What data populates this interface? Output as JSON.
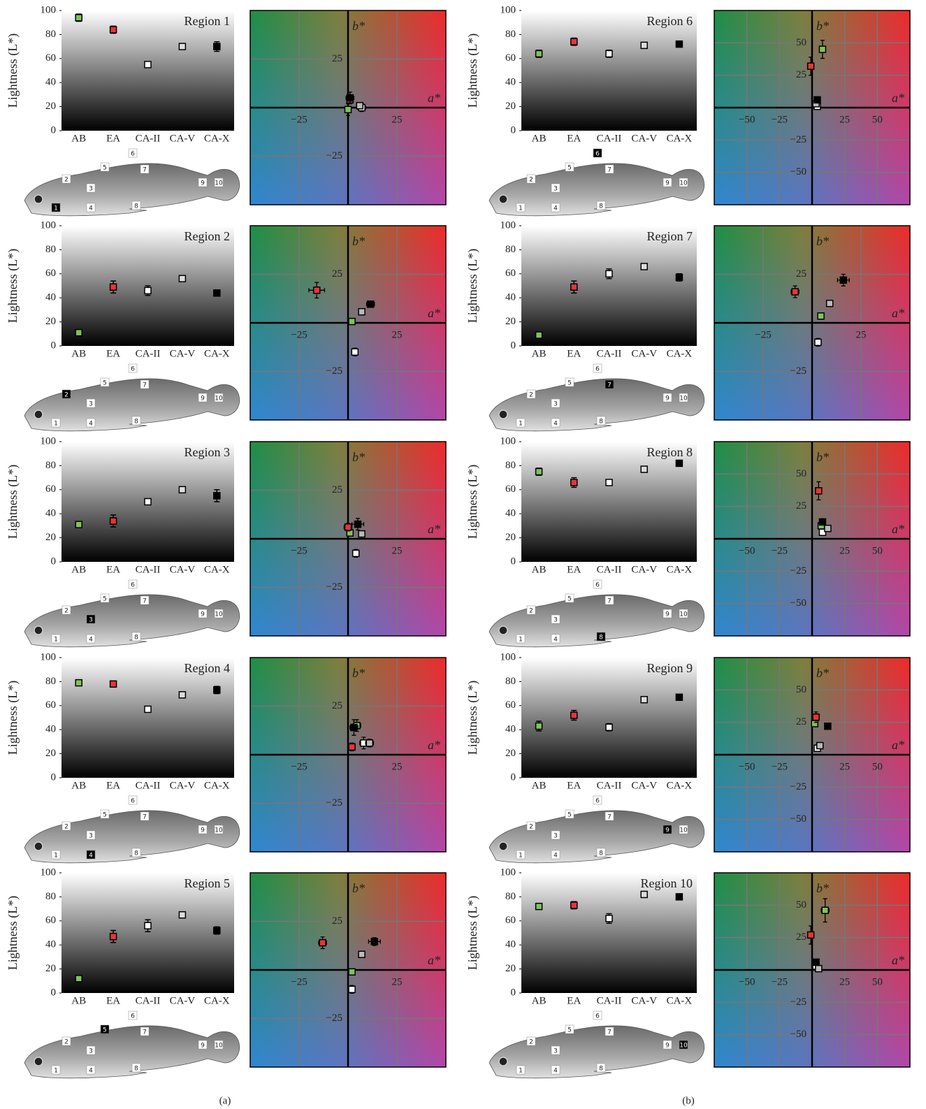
{
  "panel_labels": [
    "(a)",
    "(b)"
  ],
  "fish_labels": [
    "1",
    "2",
    "3",
    "4",
    "5",
    "6",
    "7",
    "8",
    "9",
    "10"
  ],
  "chart_data": [
    {
      "type": "errorbar",
      "title": "Region 1",
      "ylabel": "Lightness (L*)",
      "categories": [
        "AB",
        "EA",
        "CA-II",
        "CA-V",
        "CA-X"
      ],
      "values": [
        94,
        84,
        55,
        70,
        70
      ],
      "errors": [
        3,
        3,
        2,
        2,
        4
      ],
      "colors": [
        "#7dc55a",
        "#e8343a",
        "#ffffff",
        "#dddddd",
        "#000000"
      ],
      "ylim": [
        0,
        100
      ],
      "yticks": [
        0,
        20,
        40,
        60,
        80,
        100
      ]
    },
    {
      "type": "scatter",
      "xlabel": "a*",
      "ylabel": "b*",
      "x": [
        0,
        1,
        7,
        6,
        1
      ],
      "y": [
        -1,
        4,
        0,
        1,
        5
      ],
      "xerr": [
        1,
        1,
        2,
        1,
        2
      ],
      "yerr": [
        3,
        2,
        2,
        1,
        3
      ],
      "colors": [
        "#7dc55a",
        "#e8343a",
        "#ffffff",
        "#bbbbbb",
        "#000000"
      ],
      "xlim": [
        -50,
        50
      ],
      "ylim": [
        -50,
        50
      ],
      "xticks": [
        {
          "value": -25,
          "label": "−25"
        },
        25
      ],
      "yticks": [
        {
          "value": -25,
          "label": "−25"
        },
        25
      ]
    },
    {
      "type": "errorbar",
      "title": "Region 2",
      "ylabel": "Lightness (L*)",
      "categories": [
        "AB",
        "EA",
        "CA-II",
        "CA-V",
        "CA-X"
      ],
      "values": [
        11,
        49,
        46,
        56,
        44
      ],
      "errors": [
        2,
        5,
        4,
        2,
        1
      ],
      "colors": [
        "#7dc55a",
        "#e8343a",
        "#ffffff",
        "#dddddd",
        "#000000"
      ],
      "ylim": [
        0,
        100
      ],
      "yticks": [
        0,
        20,
        40,
        60,
        80,
        100
      ]
    },
    {
      "type": "scatter",
      "xlabel": "a*",
      "ylabel": "b*",
      "x": [
        2,
        -16,
        3.5,
        7,
        11.5
      ],
      "y": [
        0.7,
        16.8,
        -15,
        5.7,
        9.6
      ],
      "xerr": [
        1,
        4,
        1,
        1,
        2
      ],
      "yerr": [
        1,
        4,
        2,
        1,
        1
      ],
      "colors": [
        "#7dc55a",
        "#e8343a",
        "#ffffff",
        "#bbbbbb",
        "#000000"
      ],
      "xlim": [
        -50,
        50
      ],
      "ylim": [
        -50,
        50
      ],
      "xticks": [
        {
          "value": -25,
          "label": "−25"
        },
        25
      ],
      "yticks": [
        {
          "value": -25,
          "label": "−25"
        },
        25
      ]
    },
    {
      "type": "errorbar",
      "title": "Region 3",
      "ylabel": "Lightness (L*)",
      "categories": [
        "AB",
        "EA",
        "CA-II",
        "CA-V",
        "CA-X"
      ],
      "values": [
        31,
        34,
        50,
        60,
        55
      ],
      "errors": [
        2,
        5,
        2,
        2,
        5
      ],
      "colors": [
        "#7dc55a",
        "#e8343a",
        "#ffffff",
        "#dddddd",
        "#000000"
      ],
      "ylim": [
        0,
        100
      ],
      "yticks": [
        0,
        20,
        40,
        60,
        80,
        100
      ]
    },
    {
      "type": "scatter",
      "xlabel": "a*",
      "ylabel": "b*",
      "x": [
        1,
        0,
        4,
        7,
        5
      ],
      "y": [
        3,
        6,
        -7.5,
        2.5,
        7.5
      ],
      "xerr": [
        1,
        2,
        1,
        1,
        3
      ],
      "yerr": [
        1,
        2,
        2,
        1,
        3
      ],
      "colors": [
        "#7dc55a",
        "#e8343a",
        "#ffffff",
        "#bbbbbb",
        "#000000"
      ],
      "xlim": [
        -50,
        50
      ],
      "ylim": [
        -50,
        50
      ],
      "xticks": [
        {
          "value": -25,
          "label": "−25"
        },
        25
      ],
      "yticks": [
        {
          "value": -25,
          "label": "−25"
        },
        25
      ]
    },
    {
      "type": "errorbar",
      "title": "Region 4",
      "ylabel": "Lightness (L*)",
      "categories": [
        "AB",
        "EA",
        "CA-II",
        "CA-V",
        "CA-X"
      ],
      "values": [
        79,
        78,
        57,
        69,
        73
      ],
      "errors": [
        2,
        2,
        2,
        2,
        3
      ],
      "colors": [
        "#7dc55a",
        "#e8343a",
        "#ffffff",
        "#dddddd",
        "#000000"
      ],
      "ylim": [
        0,
        100
      ],
      "yticks": [
        0,
        20,
        40,
        60,
        80,
        100
      ]
    },
    {
      "type": "scatter",
      "xlabel": "a*",
      "ylabel": "b*",
      "x": [
        4.5,
        2,
        8,
        11,
        3
      ],
      "y": [
        15,
        4,
        6,
        6,
        14
      ],
      "xerr": [
        2,
        1,
        2,
        2,
        2
      ],
      "yerr": [
        3,
        2,
        3,
        2,
        4
      ],
      "colors": [
        "#7dc55a",
        "#e8343a",
        "#ffffff",
        "#bbbbbb",
        "#000000"
      ],
      "xlim": [
        -50,
        50
      ],
      "ylim": [
        -50,
        50
      ],
      "xticks": [
        {
          "value": -25,
          "label": "−25"
        },
        25
      ],
      "yticks": [
        {
          "value": -25,
          "label": "−25"
        },
        25
      ]
    },
    {
      "type": "errorbar",
      "title": "Region 5",
      "ylabel": "Lightness (L*)",
      "categories": [
        "AB",
        "EA",
        "CA-II",
        "CA-V",
        "CA-X"
      ],
      "values": [
        12,
        47,
        56,
        65,
        52
      ],
      "errors": [
        1,
        5,
        5,
        2,
        3
      ],
      "colors": [
        "#7dc55a",
        "#e8343a",
        "#ffffff",
        "#dddddd",
        "#000000"
      ],
      "ylim": [
        0,
        100
      ],
      "yticks": [
        0,
        20,
        40,
        60,
        80,
        100
      ]
    },
    {
      "type": "scatter",
      "xlabel": "a*",
      "ylabel": "b*",
      "x": [
        2,
        -13,
        2,
        7,
        13.5
      ],
      "y": [
        -1,
        14,
        -10,
        8,
        14.6
      ],
      "xerr": [
        1,
        2,
        1,
        1,
        3
      ],
      "yerr": [
        1,
        3,
        2,
        1,
        2
      ],
      "colors": [
        "#7dc55a",
        "#e8343a",
        "#ffffff",
        "#bbbbbb",
        "#000000"
      ],
      "xlim": [
        -50,
        50
      ],
      "ylim": [
        -50,
        50
      ],
      "xticks": [
        {
          "value": -25,
          "label": "−25"
        },
        25
      ],
      "yticks": [
        {
          "value": -25,
          "label": "−25"
        },
        25
      ]
    },
    {
      "type": "errorbar",
      "title": "Region 6",
      "ylabel": "Lightness (L*)",
      "categories": [
        "AB",
        "EA",
        "CA-II",
        "CA-V",
        "CA-X"
      ],
      "values": [
        64,
        74,
        64,
        71,
        72
      ],
      "errors": [
        3,
        3,
        3,
        2,
        1
      ],
      "colors": [
        "#7dc55a",
        "#e8343a",
        "#ffffff",
        "#dddddd",
        "#000000"
      ],
      "ylim": [
        0,
        100
      ],
      "yticks": [
        0,
        20,
        40,
        60,
        80,
        100
      ]
    },
    {
      "type": "scatter",
      "xlabel": "a*",
      "ylabel": "b*",
      "x": [
        8,
        -1,
        4,
        3,
        4
      ],
      "y": [
        45,
        32,
        1,
        3,
        6
      ],
      "xerr": [
        2,
        2,
        1,
        1,
        1
      ],
      "yerr": [
        7,
        7,
        2,
        1,
        1
      ],
      "colors": [
        "#7dc55a",
        "#e8343a",
        "#ffffff",
        "#bbbbbb",
        "#000000"
      ],
      "xlim": [
        -75,
        75
      ],
      "ylim": [
        -75,
        75
      ],
      "xticks": [
        {
          "value": -50,
          "label": "−50"
        },
        {
          "value": -25,
          "label": "−25"
        },
        25,
        50
      ],
      "yticks": [
        {
          "value": -50,
          "label": "−50"
        },
        {
          "value": -25,
          "label": "−25"
        },
        25,
        50
      ]
    },
    {
      "type": "errorbar",
      "title": "Region 7",
      "ylabel": "Lightness (L*)",
      "categories": [
        "AB",
        "EA",
        "CA-II",
        "CA-V",
        "CA-X"
      ],
      "values": [
        9,
        49,
        60,
        66,
        57
      ],
      "errors": [
        1,
        5,
        4,
        2,
        3
      ],
      "colors": [
        "#7dc55a",
        "#e8343a",
        "#ffffff",
        "#dddddd",
        "#000000"
      ],
      "ylim": [
        0,
        100
      ],
      "yticks": [
        0,
        20,
        40,
        60,
        80,
        100
      ]
    },
    {
      "type": "scatter",
      "xlabel": "a*",
      "ylabel": "b*",
      "x": [
        4.5,
        -8.7,
        3,
        9,
        16
      ],
      "y": [
        3.5,
        16,
        -10,
        10,
        22
      ],
      "xerr": [
        1,
        2,
        1,
        1,
        3
      ],
      "yerr": [
        1,
        3,
        2,
        1,
        3
      ],
      "colors": [
        "#7dc55a",
        "#e8343a",
        "#ffffff",
        "#bbbbbb",
        "#000000"
      ],
      "xlim": [
        -50,
        50
      ],
      "ylim": [
        -50,
        50
      ],
      "xticks": [
        {
          "value": -25,
          "label": "−25"
        },
        25
      ],
      "yticks": [
        {
          "value": -25,
          "label": "−25"
        },
        25
      ]
    },
    {
      "type": "errorbar",
      "title": "Region 8",
      "ylabel": "Lightness (L*)",
      "categories": [
        "AB",
        "EA",
        "CA-II",
        "CA-V",
        "CA-X"
      ],
      "values": [
        75,
        66,
        66,
        77,
        82
      ],
      "errors": [
        3,
        4,
        2,
        2,
        1
      ],
      "colors": [
        "#7dc55a",
        "#e8343a",
        "#ffffff",
        "#dddddd",
        "#000000"
      ],
      "ylim": [
        0,
        100
      ],
      "yticks": [
        0,
        20,
        40,
        60,
        80,
        100
      ]
    },
    {
      "type": "scatter",
      "xlabel": "a*",
      "ylabel": "b*",
      "x": [
        7,
        5,
        8,
        12,
        8
      ],
      "y": [
        10,
        37,
        5,
        8,
        13
      ],
      "xerr": [
        1,
        2,
        1,
        1,
        1
      ],
      "yerr": [
        1,
        7,
        1,
        1,
        2
      ],
      "colors": [
        "#7dc55a",
        "#e8343a",
        "#ffffff",
        "#bbbbbb",
        "#000000"
      ],
      "xlim": [
        -75,
        75
      ],
      "ylim": [
        -75,
        75
      ],
      "xticks": [
        {
          "value": -50,
          "label": "−50"
        },
        {
          "value": -25,
          "label": "−25"
        },
        25,
        50
      ],
      "yticks": [
        {
          "value": -50,
          "label": "−50"
        },
        {
          "value": -25,
          "label": "−25"
        },
        25,
        50
      ]
    },
    {
      "type": "errorbar",
      "title": "Region 9",
      "ylabel": "Lightness (L*)",
      "categories": [
        "AB",
        "EA",
        "CA-II",
        "CA-V",
        "CA-X"
      ],
      "values": [
        43,
        52,
        42,
        65,
        67
      ],
      "errors": [
        4,
        4,
        3,
        2,
        1
      ],
      "colors": [
        "#7dc55a",
        "#e8343a",
        "#ffffff",
        "#dddddd",
        "#000000"
      ],
      "ylim": [
        0,
        100
      ],
      "yticks": [
        0,
        20,
        40,
        60,
        80,
        100
      ]
    },
    {
      "type": "scatter",
      "xlabel": "a*",
      "ylabel": "b*",
      "x": [
        2,
        3,
        4,
        6,
        12
      ],
      "y": [
        24,
        29,
        5,
        7,
        22
      ],
      "xerr": [
        1,
        2,
        1,
        1,
        2
      ],
      "yerr": [
        2,
        4,
        1,
        1,
        2
      ],
      "colors": [
        "#7dc55a",
        "#e8343a",
        "#ffffff",
        "#bbbbbb",
        "#000000"
      ],
      "xlim": [
        -75,
        75
      ],
      "ylim": [
        -75,
        75
      ],
      "xticks": [
        {
          "value": -50,
          "label": "−50"
        },
        {
          "value": -25,
          "label": "−25"
        },
        25,
        50
      ],
      "yticks": [
        {
          "value": -50,
          "label": "−50"
        },
        {
          "value": -25,
          "label": "−25"
        },
        25,
        50
      ]
    },
    {
      "type": "errorbar",
      "title": "Region 10",
      "ylabel": "Lightness (L*)",
      "categories": [
        "AB",
        "EA",
        "CA-II",
        "CA-V",
        "CA-X"
      ],
      "values": [
        72,
        73,
        62,
        82,
        80
      ],
      "errors": [
        2,
        3,
        4,
        1,
        1
      ],
      "colors": [
        "#7dc55a",
        "#e8343a",
        "#ffffff",
        "#dddddd",
        "#000000"
      ],
      "ylim": [
        0,
        100
      ],
      "yticks": [
        0,
        20,
        40,
        60,
        80,
        100
      ]
    },
    {
      "type": "scatter",
      "xlabel": "a*",
      "ylabel": "b*",
      "x": [
        10,
        -1,
        3,
        5,
        3
      ],
      "y": [
        46,
        27,
        3,
        1,
        6
      ],
      "xerr": [
        3,
        2,
        1,
        1,
        1
      ],
      "yerr": [
        9,
        7,
        1,
        1,
        1
      ],
      "colors": [
        "#7dc55a",
        "#e8343a",
        "#ffffff",
        "#bbbbbb",
        "#000000"
      ],
      "xlim": [
        -75,
        75
      ],
      "ylim": [
        -75,
        75
      ],
      "xticks": [
        {
          "value": -50,
          "label": "−50"
        },
        {
          "value": -25,
          "label": "−25"
        },
        25,
        50
      ],
      "yticks": [
        {
          "value": -50,
          "label": "−50"
        },
        {
          "value": -25,
          "label": "−25"
        },
        25,
        50
      ]
    }
  ]
}
